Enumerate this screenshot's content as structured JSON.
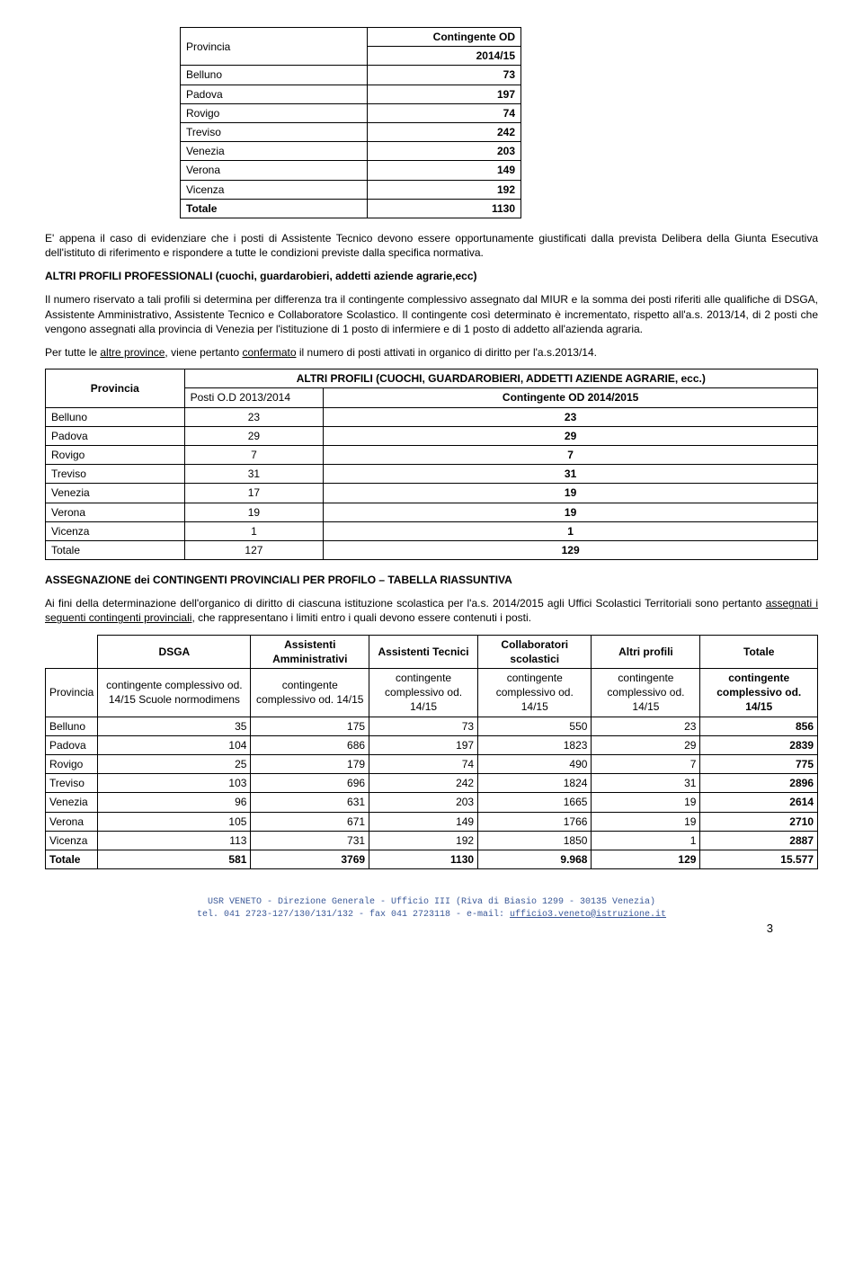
{
  "table1": {
    "header_col1": "Provincia",
    "header_col2a": "Contingente OD",
    "header_col2b": "2014/15",
    "rows": [
      [
        "Belluno",
        "73"
      ],
      [
        "Padova",
        "197"
      ],
      [
        "Rovigo",
        "74"
      ],
      [
        "Treviso",
        "242"
      ],
      [
        "Venezia",
        "203"
      ],
      [
        "Verona",
        "149"
      ],
      [
        "Vicenza",
        "192"
      ],
      [
        "Totale",
        "1130"
      ]
    ]
  },
  "para1_a": "E' appena il caso di evidenziare che i posti di Assistente Tecnico devono essere opportunamente giustificati dalla prevista Delibera della Giunta Esecutiva dell'istituto di riferimento e rispondere a tutte le condizioni previste dalla specifica normativa.",
  "heading1": "ALTRI PROFILI PROFESSIONALI (cuochi, guardarobieri, addetti aziende agrarie,ecc)",
  "para2": "Il numero riservato a tali profili si determina per differenza tra il contingente complessivo assegnato dal MIUR e la somma dei posti riferiti alle qualifiche di DSGA, Assistente Amministrativo, Assistente Tecnico e Collaboratore Scolastico. Il contingente così determinato è incrementato, rispetto all'a.s. 2013/14, di  2 posti che vengono assegnati alla provincia di Venezia per l'istituzione di 1 posto di infermiere e di 1 posto di addetto all'azienda agraria.",
  "para3_a": "Per tutte le ",
  "para3_u1": "altre province",
  "para3_b": ", viene pertanto  ",
  "para3_u2": "confermato",
  "para3_c": " il numero di posti attivati in organico di diritto per l'a.s.2013/14.",
  "table2": {
    "col1_header": "Provincia",
    "title": "ALTRI PROFILI (CUOCHI, GUARDAROBIERI, ADDETTI AZIENDE AGRARIE, ecc.)",
    "sub1": "Posti O.D 2013/2014",
    "sub2": "Contingente OD 2014/2015",
    "rows": [
      [
        "Belluno",
        "23",
        "23"
      ],
      [
        "Padova",
        "29",
        "29"
      ],
      [
        "Rovigo",
        "7",
        "7"
      ],
      [
        "Treviso",
        "31",
        "31"
      ],
      [
        "Venezia",
        "17",
        "19"
      ],
      [
        "Verona",
        "19",
        "19"
      ],
      [
        "Vicenza",
        "1",
        "1"
      ],
      [
        "Totale",
        "127",
        "129"
      ]
    ]
  },
  "heading2": "ASSEGNAZIONE dei CONTINGENTI PROVINCIALI PER PROFILO – TABELLA RIASSUNTIVA",
  "para4_a": "Ai fini della determinazione dell'organico di diritto di ciascuna istituzione scolastica per l'a.s. 2014/2015 agli Uffici Scolastici Territoriali sono pertanto ",
  "para4_u": "assegnati i seguenti contingenti provinciali",
  "para4_b": ", che rappresentano i limiti entro i quali devono essere contenuti i posti.",
  "table3": {
    "headers": [
      "",
      "DSGA",
      "Assistenti Amministrativi",
      "Assistenti Tecnici",
      "Collaboratori scolastici",
      "Altri profili",
      "Totale"
    ],
    "sub_prov": "Provincia",
    "sub1": "contingente complessivo od. 14/15 Scuole normodimens",
    "sub2": "contingente complessivo od. 14/15",
    "sub3": "contingente complessivo od. 14/15",
    "sub4": "contingente complessivo od. 14/15",
    "sub5": "contingente complessivo od. 14/15",
    "sub6": "contingente complessivo od. 14/15",
    "rows": [
      [
        "Belluno",
        "35",
        "175",
        "73",
        "550",
        "23",
        "856"
      ],
      [
        "Padova",
        "104",
        "686",
        "197",
        "1823",
        "29",
        "2839"
      ],
      [
        "Rovigo",
        "25",
        "179",
        "74",
        "490",
        "7",
        "775"
      ],
      [
        "Treviso",
        "103",
        "696",
        "242",
        "1824",
        "31",
        "2896"
      ],
      [
        "Venezia",
        "96",
        "631",
        "203",
        "1665",
        "19",
        "2614"
      ],
      [
        "Verona",
        "105",
        "671",
        "149",
        "1766",
        "19",
        "2710"
      ],
      [
        "Vicenza",
        "113",
        "731",
        "192",
        "1850",
        "1",
        "2887"
      ],
      [
        "Totale",
        "581",
        "3769",
        "1130",
        "9.968",
        "129",
        "15.577"
      ]
    ]
  },
  "footer_line1": "USR VENETO - Direzione Generale - Ufficio III (Riva di Biasio 1299 - 30135 Venezia)",
  "footer_line2a": "tel. 041 2723-127/130/131/132 - fax 041 2723118 - e-mail: ",
  "footer_email": "ufficio3.veneto@istruzione.it",
  "page_number": "3"
}
